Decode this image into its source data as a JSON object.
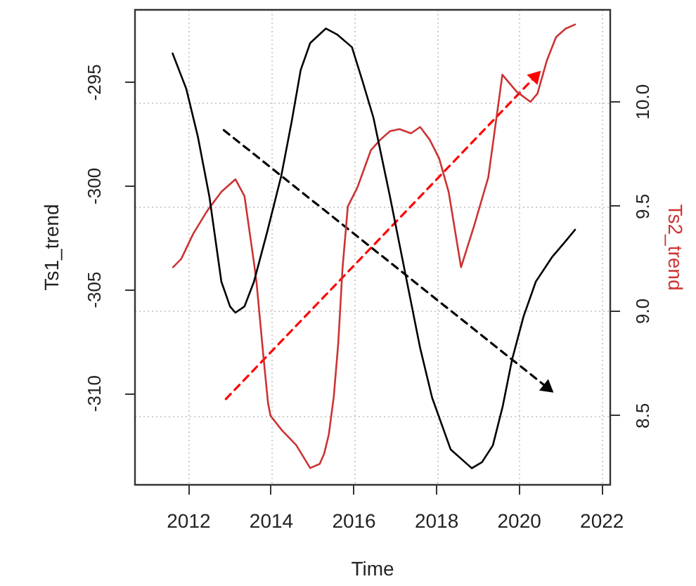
{
  "chart_data": {
    "type": "line",
    "xlabel": "Time",
    "ylabel": "Ts1_trend",
    "y2label": "Ts2_trend",
    "xlim": [
      2010.7,
      2022.2
    ],
    "xticks": [
      2012,
      2014,
      2016,
      2018,
      2020,
      2022
    ],
    "ylim": [
      -314.4,
      -291.5
    ],
    "yticks": [
      -310,
      -305,
      -300,
      -295
    ],
    "y2lim": [
      8.17,
      10.44
    ],
    "y2ticks": [
      8.5,
      {
        "value": 9,
        "label": "9.0"
      },
      9.5,
      {
        "value": 10,
        "label": "10.0"
      }
    ],
    "grid": true,
    "series": [
      {
        "color": "#000000",
        "x": [
          2011.61,
          2011.94,
          2012.22,
          2012.5,
          2012.79,
          2013.0,
          2013.13,
          2013.35,
          2013.58,
          2013.9,
          2014.24,
          2014.49,
          2014.71,
          2014.94,
          2015.32,
          2015.6,
          2015.95,
          2016.2,
          2016.47,
          2016.87,
          2017.32,
          2017.6,
          2017.89,
          2018.34,
          2018.85,
          2019.1,
          2019.36,
          2019.6,
          2019.82,
          2020.1,
          2020.4,
          2020.8,
          2021.1,
          2021.35
        ],
        "values": [
          -293.6,
          -295.3,
          -297.6,
          -300.5,
          -304.6,
          -305.8,
          -306.1,
          -305.8,
          -304.6,
          -302.2,
          -299.5,
          -296.9,
          -294.4,
          -293.1,
          -292.4,
          -292.7,
          -293.3,
          -294.9,
          -296.7,
          -300.5,
          -305,
          -307.8,
          -310.2,
          -312.7,
          -313.6,
          -313.3,
          -312.5,
          -310.6,
          -308.4,
          -306.3,
          -304.6,
          -303.4,
          -302.7,
          -302.1
        ]
      },
      {
        "color": "#cc3333",
        "axis": "y2",
        "x": [
          2011.62,
          2011.82,
          2012.11,
          2012.45,
          2012.79,
          2013.13,
          2013.35,
          2013.58,
          2013.64,
          2013.81,
          2013.92,
          2013.98,
          2014.26,
          2014.6,
          2014.94,
          2015.17,
          2015.28,
          2015.39,
          2015.51,
          2015.62,
          2015.72,
          2015.85,
          2016.08,
          2016.41,
          2016.64,
          2016.87,
          2017.1,
          2017.38,
          2017.6,
          2017.83,
          2018.06,
          2018.29,
          2018.59,
          2018.91,
          2019.25,
          2019.59,
          2019.93,
          2020.27,
          2020.44,
          2020.67,
          2020.89,
          2021.12,
          2021.35
        ],
        "values": [
          9.21,
          9.25,
          9.37,
          9.48,
          9.57,
          9.63,
          9.55,
          9.23,
          9.14,
          8.78,
          8.56,
          8.5,
          8.43,
          8.36,
          8.25,
          8.27,
          8.32,
          8.41,
          8.59,
          8.85,
          9.2,
          9.5,
          9.59,
          9.77,
          9.82,
          9.86,
          9.87,
          9.85,
          9.88,
          9.82,
          9.73,
          9.57,
          9.21,
          9.41,
          9.64,
          10.13,
          10.05,
          10,
          10.04,
          10.2,
          10.31,
          10.35,
          10.37
        ]
      },
      {
        "type": "line",
        "color": "#000000",
        "line_style": "dashed",
        "x": [
          2012.85,
          2020.67
        ],
        "values": [
          -297.3,
          -309.7
        ]
      },
      {
        "type": "line",
        "color": "#ff0000",
        "line_style": "dashed",
        "axis": "y2",
        "x": [
          2012.9,
          2020.38
        ],
        "values": [
          8.58,
          10.12
        ]
      }
    ]
  }
}
